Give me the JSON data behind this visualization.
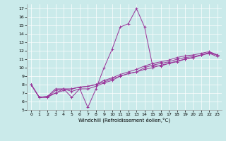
{
  "xlabel": "Windchill (Refroidissement éolien,°C)",
  "xlim": [
    -0.5,
    23.5
  ],
  "ylim": [
    5,
    17.5
  ],
  "xticks": [
    0,
    1,
    2,
    3,
    4,
    5,
    6,
    7,
    8,
    9,
    10,
    11,
    12,
    13,
    14,
    15,
    16,
    17,
    18,
    19,
    20,
    21,
    22,
    23
  ],
  "yticks": [
    5,
    6,
    7,
    8,
    9,
    10,
    11,
    12,
    13,
    14,
    15,
    16,
    17
  ],
  "bg_color": "#caeaea",
  "line_color": "#993399",
  "lines": [
    [
      0,
      8.0,
      1,
      6.5,
      2,
      6.5,
      3,
      7.0,
      4,
      7.5,
      5,
      6.5,
      6,
      7.5,
      7,
      5.3,
      8,
      7.5,
      9,
      10.0,
      10,
      12.2,
      11,
      14.8,
      12,
      15.2,
      13,
      17.0,
      14,
      14.8,
      15,
      10.2,
      16,
      10.2,
      17,
      10.5,
      18,
      10.8,
      19,
      11.0,
      20,
      11.2,
      21,
      11.5,
      22,
      11.8,
      23,
      11.5
    ],
    [
      0,
      8.0,
      1,
      6.5,
      2,
      6.5,
      3,
      7.3,
      4,
      7.5,
      5,
      7.2,
      6,
      7.5,
      7,
      7.5,
      8,
      7.8,
      9,
      8.2,
      10,
      8.5,
      11,
      9.0,
      12,
      9.3,
      13,
      9.5,
      14,
      10.0,
      15,
      10.3,
      16,
      10.5,
      17,
      10.7,
      18,
      11.0,
      19,
      11.2,
      20,
      11.3,
      21,
      11.5,
      22,
      11.7,
      23,
      11.5
    ],
    [
      0,
      8.0,
      1,
      6.5,
      2,
      6.6,
      3,
      7.0,
      4,
      7.3,
      5,
      7.5,
      6,
      7.7,
      7,
      7.8,
      8,
      8.0,
      9,
      8.3,
      10,
      8.7,
      11,
      9.0,
      12,
      9.3,
      13,
      9.5,
      14,
      9.8,
      15,
      10.0,
      16,
      10.3,
      17,
      10.5,
      18,
      10.7,
      19,
      11.0,
      20,
      11.2,
      21,
      11.5,
      22,
      11.7,
      23,
      11.3
    ],
    [
      0,
      8.0,
      1,
      6.5,
      2,
      6.6,
      3,
      7.5,
      4,
      7.5,
      5,
      7.5,
      6,
      7.7,
      7,
      7.8,
      8,
      8.0,
      9,
      8.5,
      10,
      8.8,
      11,
      9.2,
      12,
      9.5,
      13,
      9.8,
      14,
      10.2,
      15,
      10.5,
      16,
      10.7,
      17,
      10.9,
      18,
      11.2,
      19,
      11.4,
      20,
      11.5,
      21,
      11.7,
      22,
      11.9,
      23,
      11.5
    ]
  ]
}
